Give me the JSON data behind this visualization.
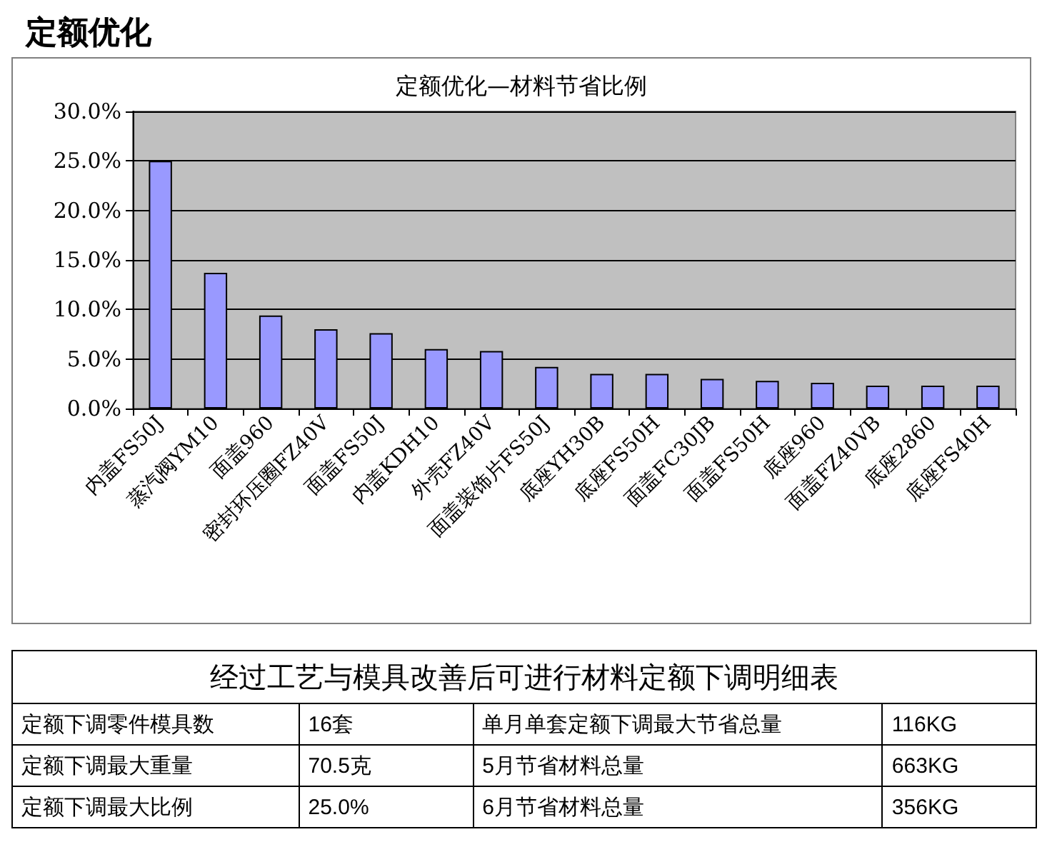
{
  "chart_data": [
    {
      "type": "bar",
      "title": "定额优化—材料节省比例",
      "annotations": [
        "定额优化"
      ],
      "categories": [
        "内盖FS50J",
        "蒸汽阀YM10",
        "面盖960",
        "密封环压圈FZ40V",
        "面盖FS50J",
        "内盖KDH10",
        "外壳FZ40V",
        "面盖装饰片FS50J",
        "底座YH30B",
        "底座FS50H",
        "面盖FC30JB",
        "面盖FS50H",
        "底座960",
        "面盖FZ40VB",
        "底座2860",
        "底座FS40H"
      ],
      "values": [
        25.0,
        13.7,
        9.4,
        8.0,
        7.6,
        6.0,
        5.8,
        4.2,
        3.5,
        3.5,
        3.0,
        2.8,
        2.6,
        2.3,
        2.3,
        2.3
      ],
      "color": "#9999ff",
      "ylim": [
        0,
        30
      ],
      "yticks": [
        {
          "value": 0,
          "label": "0.0%"
        },
        {
          "value": 5,
          "label": "5.0%"
        },
        {
          "value": 10,
          "label": "10.0%"
        },
        {
          "value": 15,
          "label": "15.0%"
        },
        {
          "value": 20,
          "label": "20.0%"
        },
        {
          "value": 25,
          "label": "25.0%"
        },
        {
          "value": 30,
          "label": "30.0%"
        }
      ],
      "grid": "y"
    },
    {
      "type": "other",
      "title": "经过工艺与模具改善后可进行材料定额下调明细表",
      "annotations": [
        "定额下调零件模具数",
        "16套",
        "单月单套定额下调最大节省总量",
        "116KG",
        "定额下调最大重量",
        "70.5克",
        "5月节省材料总量",
        "663KG",
        "定额下调最大比例",
        "25.0%",
        "6月节省材料总量",
        "356KG"
      ]
    }
  ]
}
